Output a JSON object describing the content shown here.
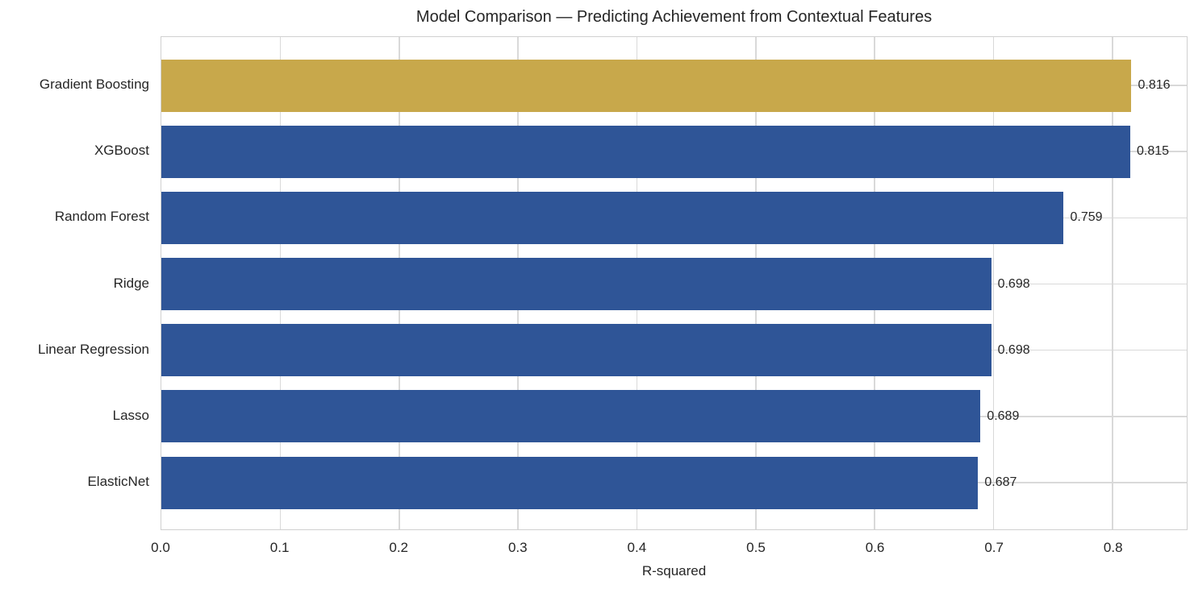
{
  "chart_data": {
    "type": "bar",
    "orientation": "horizontal",
    "title": "Model Comparison — Predicting Achievement from Contextual Features",
    "xlabel": "R-squared",
    "ylabel": "",
    "categories": [
      "Gradient Boosting",
      "XGBoost",
      "Random Forest",
      "Ridge",
      "Linear Regression",
      "Lasso",
      "ElasticNet"
    ],
    "values": [
      0.816,
      0.815,
      0.759,
      0.698,
      0.698,
      0.689,
      0.687
    ],
    "value_labels": [
      "0.816",
      "0.815",
      "0.759",
      "0.698",
      "0.698",
      "0.689",
      "0.687"
    ],
    "highlight_index": 0,
    "bar_colors": [
      "#C8A84B",
      "#2F5597",
      "#2F5597",
      "#2F5597",
      "#2F5597",
      "#2F5597",
      "#2F5597"
    ],
    "xlim": [
      0,
      0.8625
    ],
    "xticks": [
      0.0,
      0.1,
      0.2,
      0.3,
      0.4,
      0.5,
      0.6,
      0.7,
      0.8
    ],
    "xtick_labels": [
      "0.0",
      "0.1",
      "0.2",
      "0.3",
      "0.4",
      "0.5",
      "0.6",
      "0.7",
      "0.8"
    ],
    "grid": true,
    "legend": false
  },
  "colors": {
    "highlight_bar": "#C8A84B",
    "default_bar": "#2F5597",
    "gridline": "#D9D9D9",
    "spine": "#D0D0D0",
    "text": "#262626",
    "background": "#FFFFFF"
  }
}
